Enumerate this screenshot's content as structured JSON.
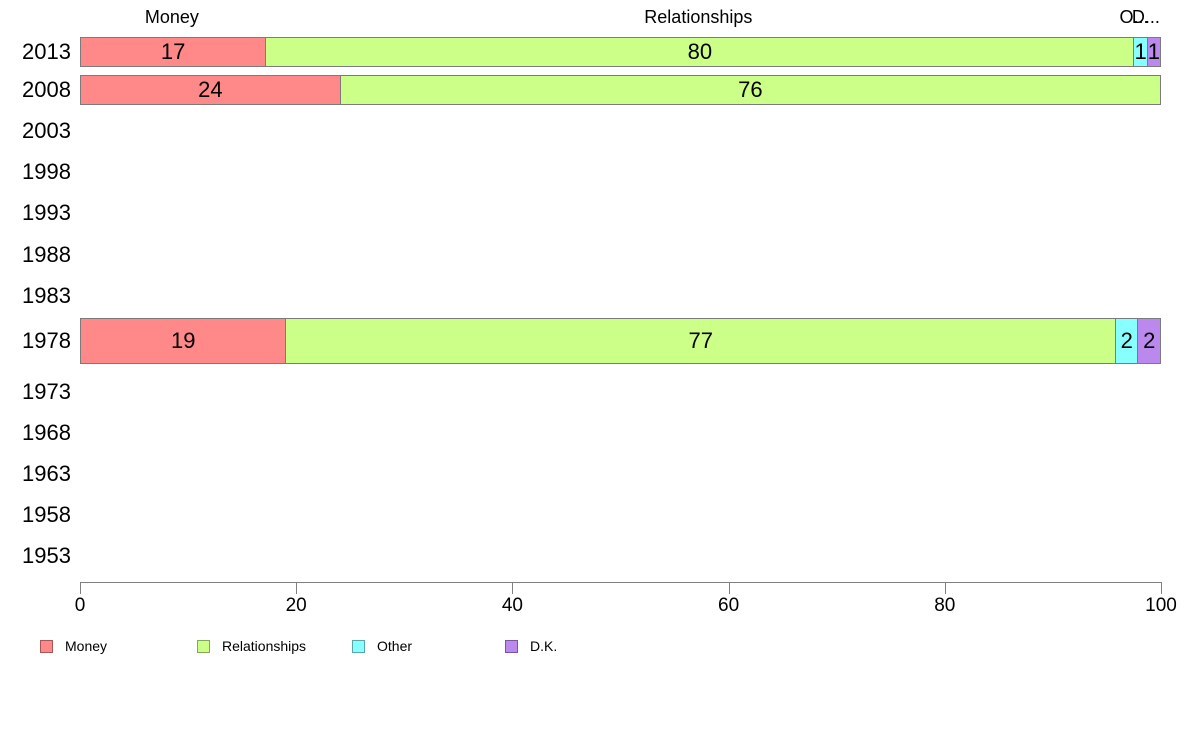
{
  "chart_data": {
    "type": "bar",
    "orientation": "horizontal",
    "stacked": true,
    "normalized_to_100": true,
    "title": "",
    "xlabel": "",
    "ylabel": "",
    "categories": [
      "2013",
      "2008",
      "2003",
      "1998",
      "1993",
      "1988",
      "1983",
      "1978",
      "1973",
      "1968",
      "1963",
      "1958",
      "1953"
    ],
    "series": [
      {
        "name": "Money",
        "color": "#ff8888",
        "values": [
          17,
          24,
          null,
          null,
          null,
          null,
          null,
          19,
          null,
          null,
          null,
          null,
          null
        ]
      },
      {
        "name": "Relationships",
        "color": "#ccff88",
        "values": [
          80,
          76,
          null,
          null,
          null,
          null,
          null,
          77,
          null,
          null,
          null,
          null,
          null
        ]
      },
      {
        "name": "Other",
        "color": "#88ffff",
        "values": [
          1,
          null,
          null,
          null,
          null,
          null,
          null,
          2,
          null,
          null,
          null,
          null,
          null
        ]
      },
      {
        "name": "D.K.",
        "color": "#bb88ee",
        "values": [
          1,
          null,
          null,
          null,
          null,
          null,
          null,
          2,
          null,
          null,
          null,
          null,
          null
        ]
      }
    ],
    "x_ticks": [
      0,
      20,
      40,
      60,
      80,
      100
    ],
    "xlim": [
      0,
      100
    ],
    "grid": false,
    "axis_color": "#808080",
    "text_color": "#000000",
    "top_labels": [
      {
        "text": "Money",
        "x_value": 8.5
      },
      {
        "text": "Relationships",
        "x_value": 57.2
      },
      {
        "text": "O...",
        "x_value": 97.5
      },
      {
        "text": "D...",
        "x_value": 98.6
      }
    ],
    "legend_position": "bottom",
    "legend": [
      {
        "label": "Money",
        "color": "#ff8888"
      },
      {
        "label": "Relationships",
        "color": "#ccff88"
      },
      {
        "label": "Other",
        "color": "#88ffff"
      },
      {
        "label": "D.K.",
        "color": "#bb88ee"
      }
    ]
  }
}
